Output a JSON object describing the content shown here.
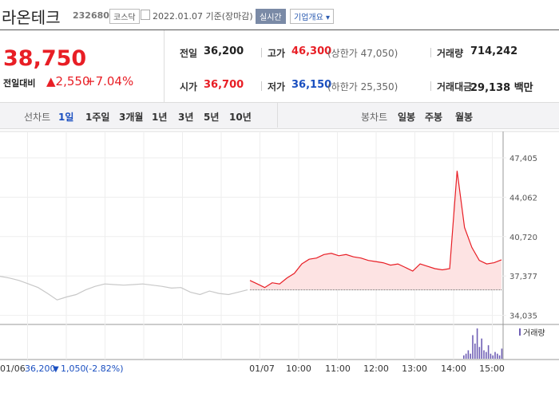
{
  "header": {
    "name": "라온테크",
    "code": "232680",
    "market": "코스닥",
    "date": "2022.01.07 기준(장마감)",
    "realtime": "실시간",
    "company": "기업개요"
  },
  "price": {
    "current": "38,750",
    "change_label": "전일대비",
    "change": "2,550",
    "rate": "+7.04%"
  },
  "stats": {
    "rows": [
      [
        {
          "label": "전일",
          "value": "36,200"
        },
        {
          "label": "고가",
          "value": "46,300",
          "extra": "(상한가 47,050)"
        },
        {
          "label": "거래량",
          "value": "714,242"
        }
      ],
      [
        {
          "label": "시가",
          "value": "36,700"
        },
        {
          "label": "저가",
          "value": "36,150",
          "extra": "(하한가 25,350)"
        },
        {
          "label": "거래대금",
          "value": "29,138 백만"
        }
      ]
    ]
  },
  "tabs": {
    "line_label": "선차트",
    "line_items": [
      "1일",
      "1주일",
      "3개월",
      "1년",
      "3년",
      "5년",
      "10년"
    ],
    "candle_label": "봉차트",
    "candle_items": [
      "일봉",
      "주봉",
      "월봉"
    ]
  },
  "chart": {
    "type": "line",
    "ylim": [
      33400,
      49300
    ],
    "yticks": [
      {
        "value": 47405,
        "label": "47,405"
      },
      {
        "value": 44062,
        "label": "44,062"
      },
      {
        "value": 40720,
        "label": "40,720"
      },
      {
        "value": 37377,
        "label": "37,377"
      },
      {
        "value": 34035,
        "label": "34,035"
      }
    ],
    "baseline": 36200,
    "series": [
      {
        "color": "#c8c8c8",
        "values": [
          37350,
          37200,
          37000,
          36700,
          36400,
          35900,
          35350,
          35600,
          35800,
          36200,
          36500,
          36700,
          36650,
          36600,
          36650,
          36700,
          36600,
          36500,
          36350,
          36400,
          36000,
          35800,
          36100,
          35900,
          35800,
          36000,
          36200
        ]
      },
      {
        "color": "#e81e25",
        "values": [
          37000,
          36700,
          36400,
          36800,
          36700,
          37200,
          37600,
          38400,
          38800,
          38900,
          39200,
          39300,
          39100,
          39200,
          39000,
          38900,
          38700,
          38600,
          38500,
          38300,
          38400,
          38100,
          37800,
          38400,
          38200,
          38000,
          37900,
          38000,
          46300,
          41500,
          39800,
          38700,
          38400,
          38500,
          38750
        ]
      }
    ],
    "volume": {
      "label": "거래량",
      "color": "#6f5fb5",
      "values": [
        2,
        3,
        5,
        3,
        14,
        9,
        18,
        7,
        12,
        5,
        4,
        8,
        3,
        2,
        4,
        3,
        2,
        6
      ]
    },
    "x_labels": [
      "01/07",
      "10:00",
      "11:00",
      "12:00",
      "13:00",
      "14:00",
      "15:00"
    ],
    "prev": {
      "date": "01/06",
      "close": "36,200",
      "change": "1,050",
      "rate": "(-2.82%)"
    }
  }
}
